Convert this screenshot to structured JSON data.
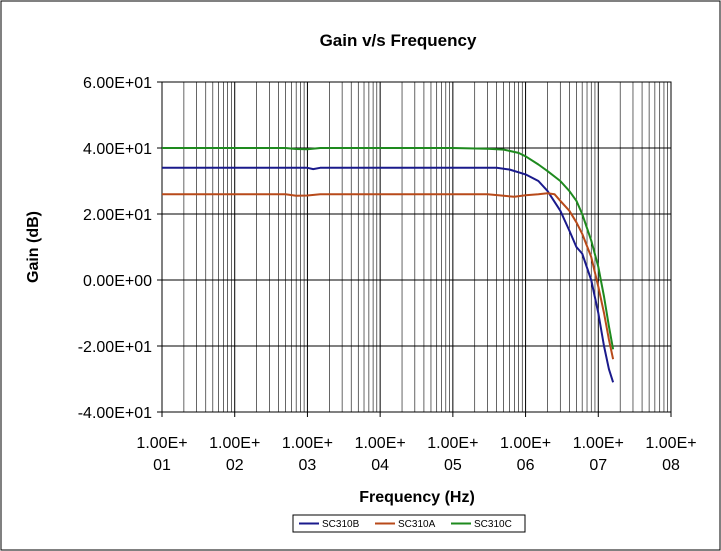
{
  "chart_data": {
    "type": "line",
    "title": "Gain v/s Frequency",
    "xlabel": "Frequency (Hz)",
    "ylabel": "Gain (dB)",
    "x_scale": "log",
    "xlim": [
      10,
      100000000
    ],
    "ylim": [
      -40,
      60
    ],
    "grid": true,
    "legend_position": "bottom",
    "x_ticks": [
      {
        "value": 10,
        "line1": "1.00E+",
        "line2": "01"
      },
      {
        "value": 100,
        "line1": "1.00E+",
        "line2": "02"
      },
      {
        "value": 1000,
        "line1": "1.00E+",
        "line2": "03"
      },
      {
        "value": 10000,
        "line1": "1.00E+",
        "line2": "04"
      },
      {
        "value": 100000,
        "line1": "1.00E+",
        "line2": "05"
      },
      {
        "value": 1000000,
        "line1": "1.00E+",
        "line2": "06"
      },
      {
        "value": 10000000,
        "line1": "1.00E+",
        "line2": "07"
      },
      {
        "value": 100000000,
        "line1": "1.00E+",
        "line2": "08"
      }
    ],
    "y_ticks": [
      {
        "value": 60,
        "label": "6.00E+01"
      },
      {
        "value": 40,
        "label": "4.00E+01"
      },
      {
        "value": 20,
        "label": "2.00E+01"
      },
      {
        "value": 0,
        "label": "0.00E+00"
      },
      {
        "value": -20,
        "label": "-2.00E+01"
      },
      {
        "value": -40,
        "label": "-4.00E+01"
      }
    ],
    "series": [
      {
        "name": "SC310B",
        "color": "#1a1a8c",
        "x": [
          10,
          1000,
          1200,
          1500,
          100000,
          400000,
          600000,
          1000000,
          1500000,
          2000000,
          3000000,
          4000000,
          5000000,
          6000000,
          8000000,
          10000000,
          12000000,
          14000000,
          16000000
        ],
        "y": [
          34,
          34,
          33.6,
          34,
          34,
          34,
          33.5,
          32,
          30,
          27,
          21,
          15,
          10,
          8,
          0,
          -10,
          -20,
          -27,
          -31
        ]
      },
      {
        "name": "SC310A",
        "color": "#b84a1a",
        "x": [
          10,
          500,
          700,
          1000,
          1500,
          10000,
          100000,
          300000,
          500000,
          700000,
          1000000,
          1500000,
          2000000,
          2500000,
          3000000,
          4000000,
          5000000,
          6000000,
          8000000,
          10000000,
          12000000,
          14000000,
          16000000
        ],
        "y": [
          26,
          26,
          25.5,
          25.6,
          26,
          26,
          26,
          26,
          25.5,
          25.2,
          25.7,
          26,
          26.3,
          26,
          24,
          21,
          17.5,
          14,
          7,
          -2,
          -10,
          -18,
          -24
        ]
      },
      {
        "name": "SC310C",
        "color": "#1e8a1e",
        "x": [
          10,
          500,
          700,
          1000,
          1500,
          10000,
          100000,
          300000,
          500000,
          800000,
          1000000,
          1500000,
          2000000,
          3000000,
          4000000,
          5000000,
          6000000,
          8000000,
          10000000,
          12000000,
          14000000,
          16000000
        ],
        "y": [
          40,
          40,
          39.7,
          39.6,
          40,
          40,
          40,
          39.8,
          39.5,
          38.5,
          37.5,
          35,
          33,
          30,
          27,
          24,
          20,
          12,
          4,
          -5,
          -14,
          -21
        ]
      }
    ]
  }
}
